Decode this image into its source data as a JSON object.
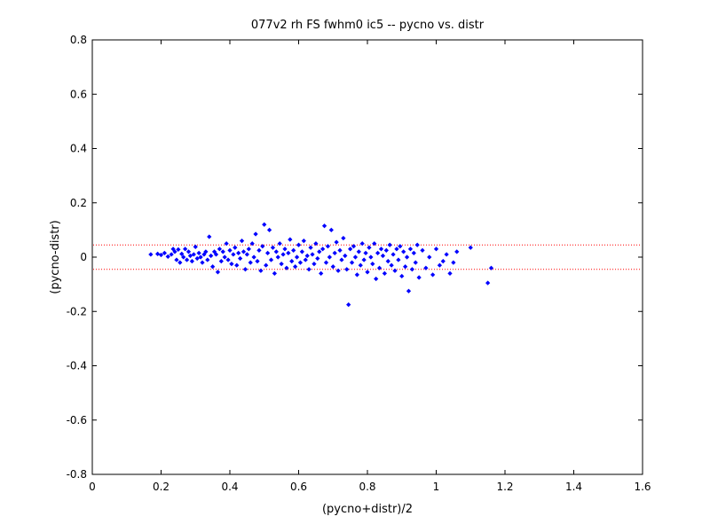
{
  "chart_data": {
    "type": "scatter",
    "title": "077v2 rh FS fwhm0 ic5 -- pycno vs. distr",
    "xlabel": "(pycno+distr)/2",
    "ylabel": "(pycno-distr)",
    "xlim": [
      0,
      1.6
    ],
    "ylim": [
      -0.8,
      0.8
    ],
    "xticks": [
      "0",
      "0.2",
      "0.4",
      "0.6",
      "0.8",
      "1",
      "1.2",
      "1.4",
      "1.6"
    ],
    "yticks": [
      "-0.8",
      "-0.6",
      "-0.4",
      "-0.2",
      "0",
      "0.2",
      "0.4",
      "0.6",
      "0.8"
    ],
    "grid": false,
    "marker_color": "#0000ff",
    "reference_lines": {
      "y": [
        0.045,
        -0.045
      ],
      "color": "#ff0000",
      "style": "dotted"
    },
    "series": [
      {
        "points": [
          [
            0.17,
            0.01
          ],
          [
            0.19,
            0.012
          ],
          [
            0.2,
            0.008
          ],
          [
            0.21,
            0.015
          ],
          [
            0.22,
            0.002
          ],
          [
            0.23,
            0.01
          ],
          [
            0.235,
            0.03
          ],
          [
            0.24,
            0.02
          ],
          [
            0.245,
            -0.01
          ],
          [
            0.25,
            0.028
          ],
          [
            0.255,
            -0.02
          ],
          [
            0.26,
            0.012
          ],
          [
            0.265,
            0.0
          ],
          [
            0.27,
            0.03
          ],
          [
            0.275,
            -0.01
          ],
          [
            0.28,
            0.02
          ],
          [
            0.285,
            0.005
          ],
          [
            0.29,
            -0.015
          ],
          [
            0.295,
            0.01
          ],
          [
            0.3,
            0.038
          ],
          [
            0.305,
            -0.005
          ],
          [
            0.31,
            0.015
          ],
          [
            0.315,
            0.0
          ],
          [
            0.32,
            -0.02
          ],
          [
            0.325,
            0.01
          ],
          [
            0.33,
            0.02
          ],
          [
            0.335,
            -0.01
          ],
          [
            0.34,
            0.075
          ],
          [
            0.345,
            0.005
          ],
          [
            0.35,
            -0.035
          ],
          [
            0.355,
            0.02
          ],
          [
            0.36,
            0.01
          ],
          [
            0.365,
            -0.055
          ],
          [
            0.37,
            0.03
          ],
          [
            0.375,
            -0.015
          ],
          [
            0.38,
            0.02
          ],
          [
            0.385,
            0.0
          ],
          [
            0.39,
            0.05
          ],
          [
            0.395,
            -0.01
          ],
          [
            0.4,
            0.025
          ],
          [
            0.405,
            -0.025
          ],
          [
            0.41,
            0.01
          ],
          [
            0.415,
            0.035
          ],
          [
            0.42,
            -0.03
          ],
          [
            0.425,
            0.015
          ],
          [
            0.43,
            -0.005
          ],
          [
            0.435,
            0.06
          ],
          [
            0.44,
            0.02
          ],
          [
            0.445,
            -0.045
          ],
          [
            0.45,
            0.01
          ],
          [
            0.455,
            0.03
          ],
          [
            0.46,
            -0.02
          ],
          [
            0.465,
            0.05
          ],
          [
            0.47,
            0.0
          ],
          [
            0.475,
            0.085
          ],
          [
            0.48,
            -0.015
          ],
          [
            0.485,
            0.025
          ],
          [
            0.49,
            -0.05
          ],
          [
            0.495,
            0.04
          ],
          [
            0.5,
            0.12
          ],
          [
            0.505,
            -0.03
          ],
          [
            0.51,
            0.015
          ],
          [
            0.515,
            0.1
          ],
          [
            0.52,
            -0.01
          ],
          [
            0.525,
            0.035
          ],
          [
            0.53,
            -0.06
          ],
          [
            0.535,
            0.02
          ],
          [
            0.54,
            0.0
          ],
          [
            0.545,
            0.05
          ],
          [
            0.55,
            -0.025
          ],
          [
            0.555,
            0.01
          ],
          [
            0.56,
            0.03
          ],
          [
            0.565,
            -0.04
          ],
          [
            0.57,
            0.015
          ],
          [
            0.575,
            0.065
          ],
          [
            0.58,
            -0.015
          ],
          [
            0.585,
            0.025
          ],
          [
            0.59,
            -0.035
          ],
          [
            0.595,
            0.0
          ],
          [
            0.6,
            0.045
          ],
          [
            0.605,
            -0.02
          ],
          [
            0.61,
            0.02
          ],
          [
            0.615,
            0.06
          ],
          [
            0.62,
            -0.01
          ],
          [
            0.625,
            0.005
          ],
          [
            0.63,
            -0.045
          ],
          [
            0.635,
            0.035
          ],
          [
            0.64,
            0.01
          ],
          [
            0.645,
            -0.025
          ],
          [
            0.65,
            0.05
          ],
          [
            0.655,
            -0.005
          ],
          [
            0.66,
            0.02
          ],
          [
            0.665,
            -0.06
          ],
          [
            0.67,
            0.03
          ],
          [
            0.675,
            0.115
          ],
          [
            0.68,
            -0.02
          ],
          [
            0.685,
            0.04
          ],
          [
            0.69,
            0.0
          ],
          [
            0.695,
            0.1
          ],
          [
            0.7,
            -0.035
          ],
          [
            0.705,
            0.015
          ],
          [
            0.71,
            0.055
          ],
          [
            0.715,
            -0.05
          ],
          [
            0.72,
            0.025
          ],
          [
            0.725,
            -0.01
          ],
          [
            0.73,
            0.07
          ],
          [
            0.735,
            0.005
          ],
          [
            0.74,
            -0.045
          ],
          [
            0.745,
            -0.175
          ],
          [
            0.75,
            0.03
          ],
          [
            0.755,
            -0.02
          ],
          [
            0.76,
            0.04
          ],
          [
            0.765,
            0.0
          ],
          [
            0.77,
            -0.065
          ],
          [
            0.775,
            0.02
          ],
          [
            0.78,
            -0.03
          ],
          [
            0.785,
            0.05
          ],
          [
            0.79,
            -0.01
          ],
          [
            0.795,
            0.015
          ],
          [
            0.8,
            -0.055
          ],
          [
            0.805,
            0.035
          ],
          [
            0.81,
            0.0
          ],
          [
            0.815,
            -0.025
          ],
          [
            0.82,
            0.05
          ],
          [
            0.825,
            -0.08
          ],
          [
            0.83,
            0.015
          ],
          [
            0.835,
            -0.04
          ],
          [
            0.84,
            0.03
          ],
          [
            0.845,
            0.005
          ],
          [
            0.85,
            -0.06
          ],
          [
            0.855,
            0.025
          ],
          [
            0.86,
            -0.015
          ],
          [
            0.865,
            0.045
          ],
          [
            0.87,
            -0.03
          ],
          [
            0.875,
            0.01
          ],
          [
            0.88,
            -0.05
          ],
          [
            0.885,
            0.03
          ],
          [
            0.89,
            -0.01
          ],
          [
            0.895,
            0.04
          ],
          [
            0.9,
            -0.07
          ],
          [
            0.905,
            0.02
          ],
          [
            0.91,
            -0.035
          ],
          [
            0.915,
            0.0
          ],
          [
            0.92,
            -0.125
          ],
          [
            0.925,
            0.03
          ],
          [
            0.93,
            -0.045
          ],
          [
            0.935,
            0.015
          ],
          [
            0.94,
            -0.02
          ],
          [
            0.945,
            0.045
          ],
          [
            0.95,
            -0.075
          ],
          [
            0.96,
            0.025
          ],
          [
            0.97,
            -0.04
          ],
          [
            0.98,
            0.0
          ],
          [
            0.99,
            -0.065
          ],
          [
            1.0,
            0.03
          ],
          [
            1.01,
            -0.03
          ],
          [
            1.02,
            -0.015
          ],
          [
            1.03,
            0.01
          ],
          [
            1.04,
            -0.06
          ],
          [
            1.05,
            -0.02
          ],
          [
            1.06,
            0.02
          ],
          [
            1.1,
            0.035
          ],
          [
            1.15,
            -0.095
          ],
          [
            1.16,
            -0.04
          ]
        ]
      }
    ]
  }
}
